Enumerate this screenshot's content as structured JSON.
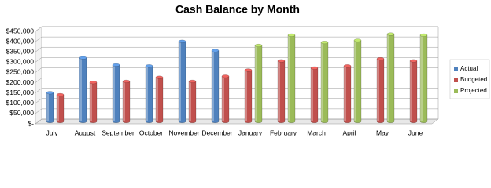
{
  "chart_data": {
    "type": "bar",
    "title": "Cash Balance by Month",
    "categories": [
      "July",
      "August",
      "September",
      "October",
      "November",
      "December",
      "January",
      "February",
      "March",
      "April",
      "May",
      "June"
    ],
    "series": [
      {
        "name": "Actual",
        "color": "#4f81bd",
        "values": [
          140000,
          310000,
          275000,
          270000,
          390000,
          345000,
          null,
          null,
          null,
          null,
          null,
          null
        ]
      },
      {
        "name": "Budgeted",
        "color": "#c0504d",
        "values": [
          130000,
          190000,
          195000,
          215000,
          195000,
          220000,
          250000,
          295000,
          260000,
          270000,
          305000,
          295000
        ]
      },
      {
        "name": "Projected",
        "color": "#9bbb59",
        "values": [
          null,
          null,
          null,
          null,
          null,
          null,
          370000,
          420000,
          385000,
          395000,
          425000,
          420000
        ]
      }
    ],
    "ylim": [
      0,
      450000
    ],
    "yticks": [
      {
        "value": 0,
        "label": "$-"
      },
      {
        "value": 50000,
        "label": "$50,000"
      },
      {
        "value": 100000,
        "label": "$100,000"
      },
      {
        "value": 150000,
        "label": "$150,000"
      },
      {
        "value": 200000,
        "label": "$200,000"
      },
      {
        "value": 250000,
        "label": "$250,000"
      },
      {
        "value": 300000,
        "label": "$300,000"
      },
      {
        "value": 350000,
        "label": "$350,000"
      },
      {
        "value": 400000,
        "label": "$400,000"
      },
      {
        "value": 450000,
        "label": "$450,000"
      }
    ],
    "grid": true,
    "legend": "right"
  }
}
